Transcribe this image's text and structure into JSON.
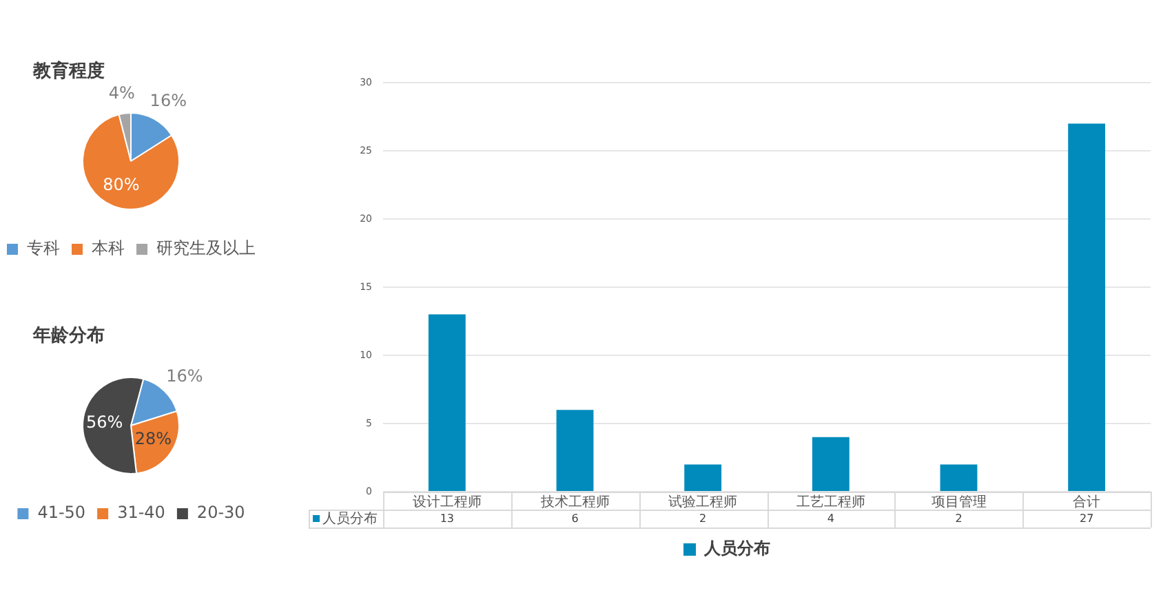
{
  "chart_data": [
    {
      "type": "pie",
      "title": "教育程度",
      "categories": [
        "专科",
        "本科",
        "研究生及以上"
      ],
      "values": [
        16,
        80,
        4
      ],
      "colors": [
        "#5b9bd5",
        "#ed7d31",
        "#a5a5a5"
      ],
      "value_labels": [
        "16%",
        "80%",
        "4%"
      ],
      "legend": "bottom"
    },
    {
      "type": "pie",
      "title": "年龄分布",
      "categories": [
        "41-50",
        "31-40",
        "20-30"
      ],
      "values": [
        16,
        28,
        56
      ],
      "colors": [
        "#5b9bd5",
        "#ed7d31",
        "#474747"
      ],
      "value_labels": [
        "16%",
        "28%",
        "56%"
      ],
      "legend": "bottom"
    },
    {
      "type": "bar",
      "categories": [
        "设计工程师",
        "技术工程师",
        "试验工程师",
        "工艺工程师",
        "项目管理",
        "合计"
      ],
      "series": [
        {
          "name": "人员分布",
          "color": "#008bbc",
          "values": [
            13,
            6,
            2,
            4,
            2,
            27
          ]
        }
      ],
      "ylim": [
        0,
        30
      ],
      "yticks": [
        0,
        5,
        10,
        15,
        20,
        25,
        30
      ],
      "grid": "y",
      "legend": "bottom",
      "data_labels": true
    }
  ]
}
